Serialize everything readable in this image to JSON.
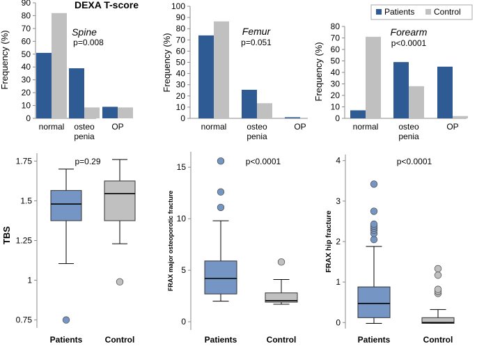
{
  "figure": {
    "title": "DEXA T-score",
    "colors": {
      "patients": "#2E5B94",
      "control": "#C0C0C0",
      "patients_box": "#7596C4",
      "marker": "#7596C4",
      "axis": "#888888",
      "text": "#000000"
    },
    "legend": {
      "patients": "Patients",
      "control": "Control"
    }
  },
  "chart_data": [
    {
      "id": "spine",
      "type": "bar",
      "panel_title": "Spine",
      "pvalue": "p=0.008",
      "ylabel": "Frequency (%)",
      "ylim": [
        0,
        90
      ],
      "yticks": [
        0,
        10,
        20,
        30,
        40,
        50,
        60,
        70,
        80,
        90
      ],
      "categories": [
        [
          "normal"
        ],
        [
          "osteo",
          "penia"
        ],
        [
          "OP"
        ]
      ],
      "series": [
        {
          "name": "Patients",
          "values": [
            51,
            39,
            9
          ]
        },
        {
          "name": "Control",
          "values": [
            82,
            8.5,
            8.5
          ]
        }
      ]
    },
    {
      "id": "femur",
      "type": "bar",
      "panel_title": "Femur",
      "pvalue": "p=0.051",
      "ylabel": "Frequency (%)",
      "ylim": [
        0,
        100
      ],
      "yticks": [
        0,
        10,
        20,
        30,
        40,
        50,
        60,
        70,
        80,
        90,
        100
      ],
      "categories": [
        [
          "normal"
        ],
        [
          "osteo",
          "penia"
        ],
        [
          "OP"
        ]
      ],
      "series": [
        {
          "name": "Patients",
          "values": [
            74,
            25.5,
            1
          ]
        },
        {
          "name": "Control",
          "values": [
            86.5,
            13.5,
            0
          ]
        }
      ]
    },
    {
      "id": "forearm",
      "type": "bar",
      "panel_title": "Forearm",
      "pvalue": "p<0.0001",
      "ylabel": "Frequency (%)",
      "ylim": [
        0,
        80
      ],
      "yticks": [
        0,
        10,
        20,
        30,
        40,
        50,
        60,
        70,
        80
      ],
      "categories": [
        [
          "normal"
        ],
        [
          "osteo",
          "penia"
        ],
        [
          "OP"
        ]
      ],
      "series": [
        {
          "name": "Patients",
          "values": [
            7,
            49,
            45
          ]
        },
        {
          "name": "Control",
          "values": [
            71,
            28,
            2
          ]
        }
      ]
    },
    {
      "id": "tbs",
      "type": "box",
      "pvalue": "p=0.29",
      "ylabel": "TBS",
      "ylim": [
        0.7,
        1.8
      ],
      "yticks": [
        "0.75",
        "1",
        "1.25",
        "1.5",
        "1.75"
      ],
      "categories": [
        "Patients",
        "Control"
      ],
      "boxes": [
        {
          "name": "Patients",
          "whisker_low": 1.105,
          "q1": 1.375,
          "median": 1.48,
          "q3": 1.565,
          "whisker_high": 1.7,
          "outliers": [
            0.75
          ]
        },
        {
          "name": "Control",
          "whisker_low": 1.23,
          "q1": 1.375,
          "median": 1.545,
          "q3": 1.625,
          "whisker_high": 1.76,
          "outliers": [
            0.99
          ]
        }
      ]
    },
    {
      "id": "frax_major",
      "type": "box",
      "pvalue": "p<0.0001",
      "ylabel": "FRAX major osteoporotic fracture",
      "ylim": [
        -0.8,
        16.5
      ],
      "yticks": [
        "0",
        "5",
        "10",
        "15"
      ],
      "categories": [
        "Patients",
        "Control"
      ],
      "boxes": [
        {
          "name": "Patients",
          "whisker_low": 2.0,
          "q1": 2.7,
          "median": 4.2,
          "q3": 5.9,
          "whisker_high": 9.8,
          "outliers": [
            11.1,
            12.6,
            15.6
          ]
        },
        {
          "name": "Control",
          "whisker_low": 1.7,
          "q1": 1.9,
          "median": 2.05,
          "q3": 2.8,
          "whisker_high": 4.1,
          "outliers": [
            5.8
          ]
        }
      ]
    },
    {
      "id": "frax_hip",
      "type": "box",
      "pvalue": "p<0.0001",
      "ylabel": "FRAX hip fracture",
      "ylim": [
        -0.15,
        4.15
      ],
      "yticks": [
        "0",
        "1",
        "2",
        "3",
        "4"
      ],
      "categories": [
        "Patients",
        "Control"
      ],
      "boxes": [
        {
          "name": "Patients",
          "whisker_low": -0.02,
          "q1": 0.12,
          "median": 0.47,
          "q3": 0.88,
          "whisker_high": 1.88,
          "outliers": [
            2.05,
            2.2,
            2.28,
            2.33,
            2.38,
            2.43,
            2.75,
            3.42
          ]
        },
        {
          "name": "Control",
          "whisker_low": -0.02,
          "q1": -0.02,
          "median": 0.0,
          "q3": 0.12,
          "whisker_high": 0.32,
          "outliers": [
            0.72,
            0.77,
            0.82,
            1.17,
            1.33
          ]
        }
      ]
    }
  ]
}
